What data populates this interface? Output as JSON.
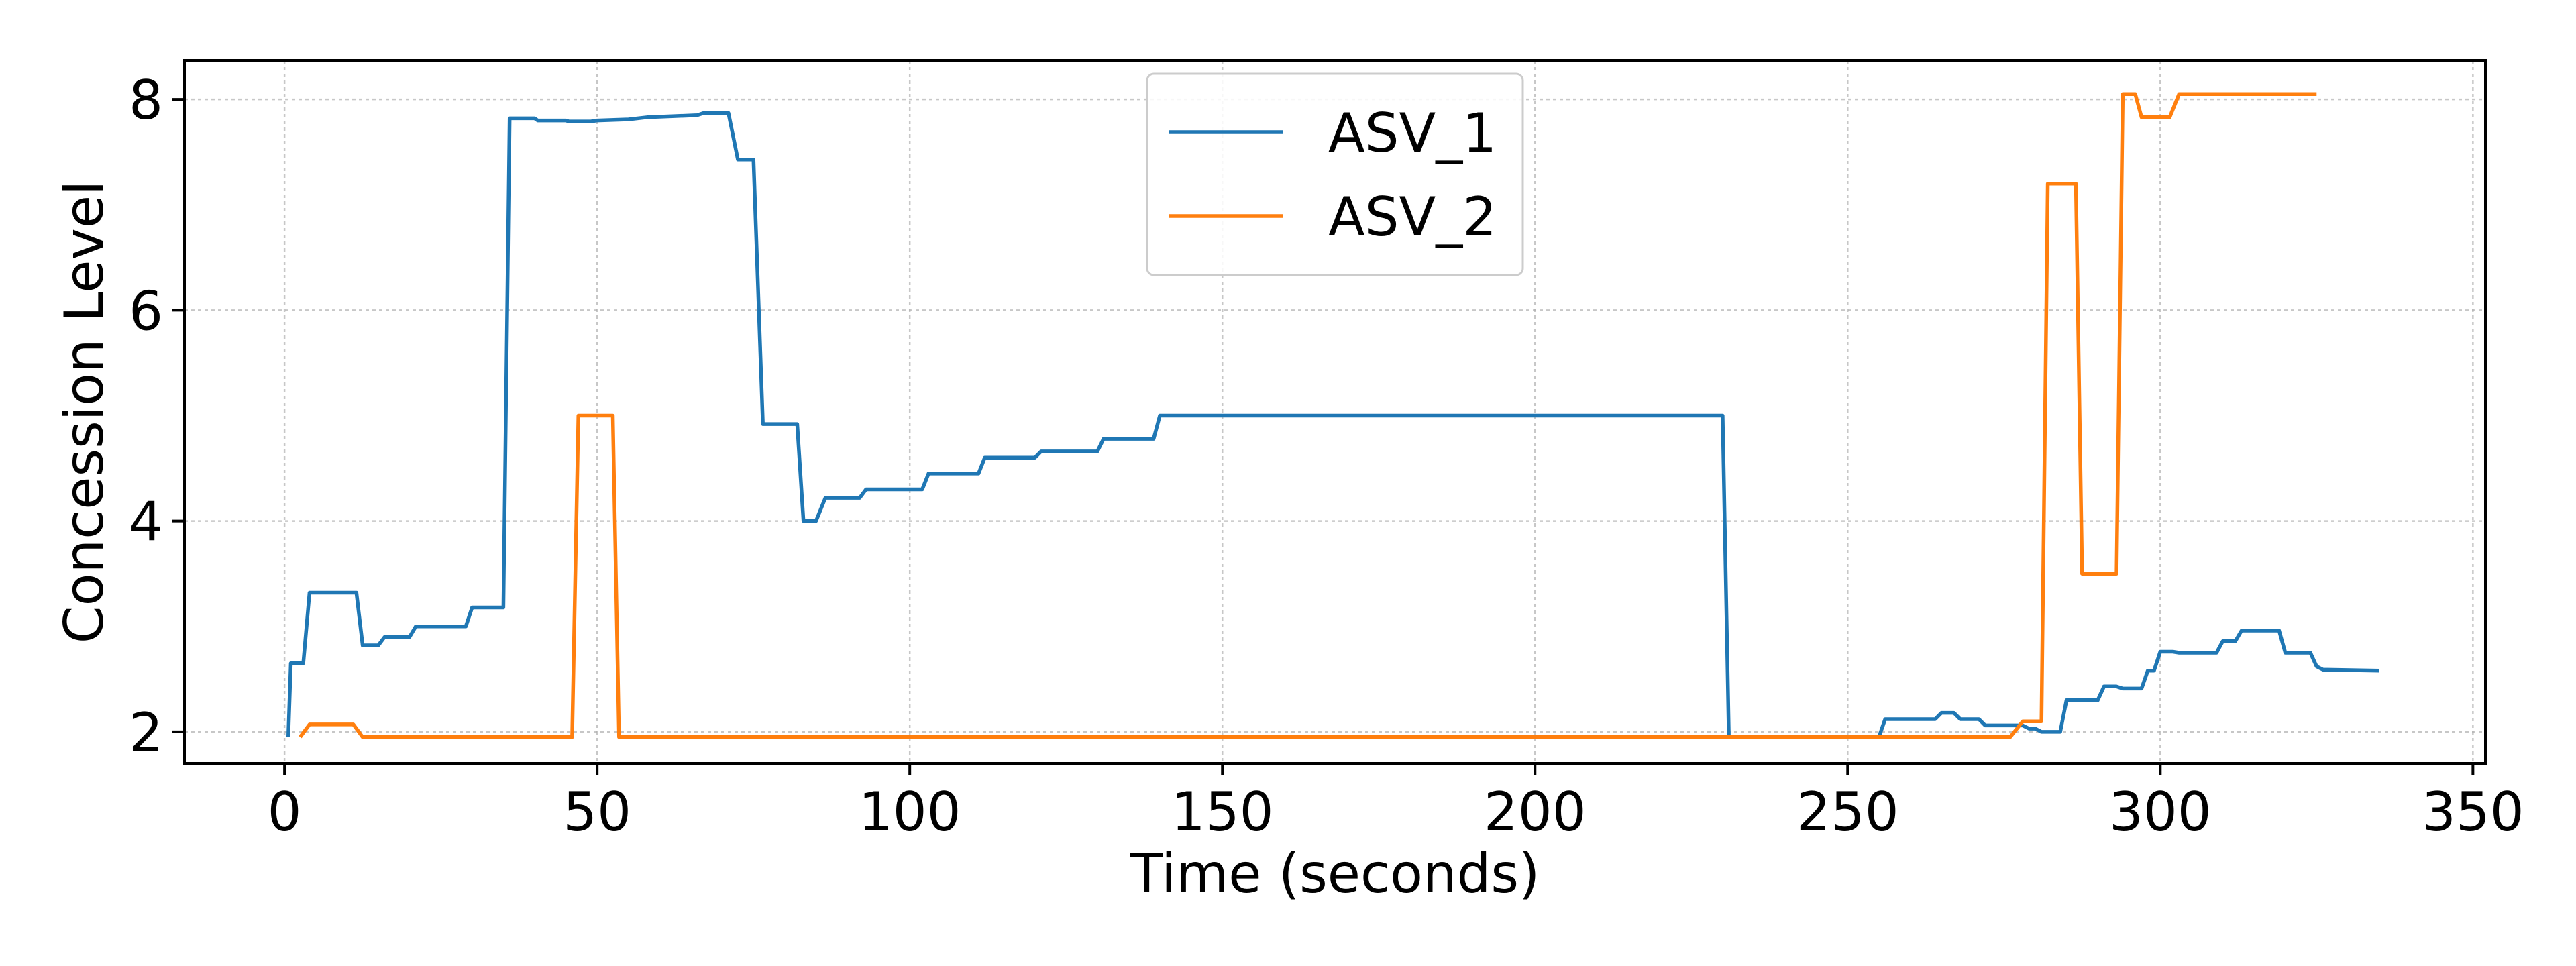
{
  "chart_data": {
    "type": "line",
    "title": "",
    "xlabel": "Time (seconds)",
    "ylabel": "Concession Level",
    "xlim": [
      -16,
      352
    ],
    "ylim": [
      1.7,
      8.37
    ],
    "xticks": [
      0,
      50,
      100,
      150,
      200,
      250,
      300,
      350
    ],
    "yticks": [
      2,
      4,
      6,
      8
    ],
    "grid": true,
    "legend": "upper-center",
    "series": [
      {
        "name": "ASV_1",
        "color": "#1f77b4",
        "points": [
          [
            0.6,
            1.95
          ],
          [
            1.0,
            2.65
          ],
          [
            3.0,
            2.65
          ],
          [
            4.0,
            3.32
          ],
          [
            11.5,
            3.32
          ],
          [
            12.5,
            2.82
          ],
          [
            15.0,
            2.82
          ],
          [
            16.0,
            2.9
          ],
          [
            20.0,
            2.9
          ],
          [
            21.0,
            3.0
          ],
          [
            29.0,
            3.0
          ],
          [
            30.0,
            3.18
          ],
          [
            35.0,
            3.18
          ],
          [
            36.0,
            7.82
          ],
          [
            40.0,
            7.82
          ],
          [
            40.5,
            7.8
          ],
          [
            45.0,
            7.8
          ],
          [
            45.5,
            7.79
          ],
          [
            49.0,
            7.79
          ],
          [
            50.0,
            7.8
          ],
          [
            55.0,
            7.81
          ],
          [
            58.0,
            7.83
          ],
          [
            62.0,
            7.84
          ],
          [
            66.0,
            7.85
          ],
          [
            67.0,
            7.87
          ],
          [
            71.0,
            7.87
          ],
          [
            72.5,
            7.43
          ],
          [
            75.0,
            7.43
          ],
          [
            76.5,
            4.92
          ],
          [
            82.0,
            4.92
          ],
          [
            83.0,
            4.0
          ],
          [
            85.0,
            4.0
          ],
          [
            86.5,
            4.22
          ],
          [
            92.0,
            4.22
          ],
          [
            93.0,
            4.3
          ],
          [
            102.0,
            4.3
          ],
          [
            103.0,
            4.45
          ],
          [
            111.0,
            4.45
          ],
          [
            112.0,
            4.6
          ],
          [
            120.0,
            4.6
          ],
          [
            121.0,
            4.66
          ],
          [
            130.0,
            4.66
          ],
          [
            131.0,
            4.78
          ],
          [
            139.0,
            4.78
          ],
          [
            140.0,
            5.0
          ],
          [
            230.0,
            5.0
          ],
          [
            231.0,
            1.95
          ],
          [
            255.0,
            1.95
          ],
          [
            256.0,
            2.12
          ],
          [
            264.0,
            2.12
          ],
          [
            265.0,
            2.18
          ],
          [
            267.0,
            2.18
          ],
          [
            268.0,
            2.12
          ],
          [
            271.0,
            2.12
          ],
          [
            272.0,
            2.06
          ],
          [
            278.0,
            2.06
          ],
          [
            279.0,
            2.03
          ],
          [
            280.0,
            2.03
          ],
          [
            281.0,
            2.0
          ],
          [
            284.0,
            2.0
          ],
          [
            285.0,
            2.3
          ],
          [
            290.0,
            2.3
          ],
          [
            291.0,
            2.43
          ],
          [
            293.0,
            2.43
          ],
          [
            294.0,
            2.41
          ],
          [
            297.0,
            2.41
          ],
          [
            298.0,
            2.58
          ],
          [
            299.0,
            2.58
          ],
          [
            300.0,
            2.76
          ],
          [
            302.0,
            2.76
          ],
          [
            303.0,
            2.75
          ],
          [
            309.0,
            2.75
          ],
          [
            310.0,
            2.86
          ],
          [
            312.0,
            2.86
          ],
          [
            313.0,
            2.96
          ],
          [
            319.0,
            2.96
          ],
          [
            320.0,
            2.75
          ],
          [
            324.0,
            2.75
          ],
          [
            325.0,
            2.62
          ],
          [
            326.0,
            2.59
          ],
          [
            335.0,
            2.58
          ]
        ]
      },
      {
        "name": "ASV_2",
        "color": "#ff7f0e",
        "points": [
          [
            2.5,
            1.95
          ],
          [
            4.0,
            2.07
          ],
          [
            11.0,
            2.07
          ],
          [
            12.5,
            1.95
          ],
          [
            46.0,
            1.95
          ],
          [
            47.0,
            5.0
          ],
          [
            52.5,
            5.0
          ],
          [
            53.5,
            1.95
          ],
          [
            276.0,
            1.95
          ],
          [
            278.0,
            2.1
          ],
          [
            281.0,
            2.1
          ],
          [
            282.0,
            7.2
          ],
          [
            286.5,
            7.2
          ],
          [
            287.5,
            3.5
          ],
          [
            293.0,
            3.5
          ],
          [
            294.0,
            8.05
          ],
          [
            296.0,
            8.05
          ],
          [
            297.0,
            7.83
          ],
          [
            301.5,
            7.83
          ],
          [
            303.0,
            8.05
          ],
          [
            325.0,
            8.05
          ]
        ]
      }
    ]
  }
}
